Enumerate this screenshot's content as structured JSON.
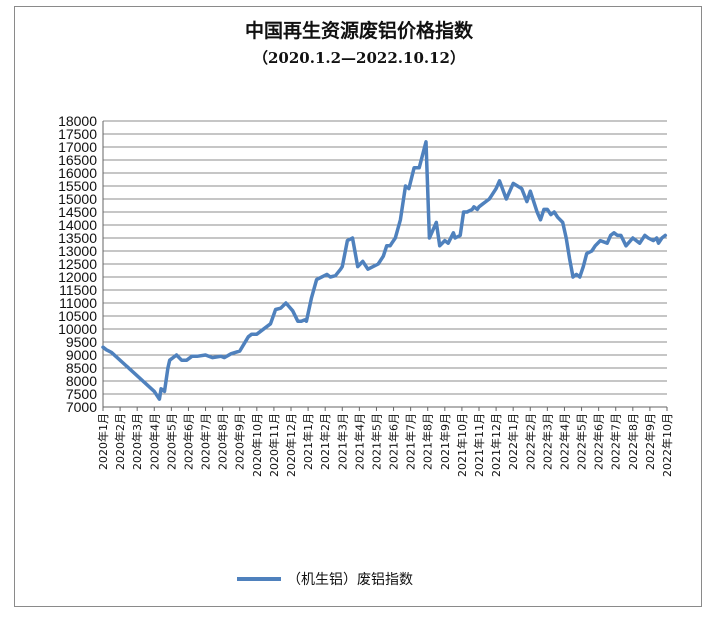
{
  "chart_data": {
    "type": "line",
    "title": "中国再生资源废铝价格指数",
    "subtitle": "（2020.1.2—2022.10.12）",
    "xlabel": "",
    "ylabel": "",
    "ylim": [
      7000,
      18000
    ],
    "y_ticks": [
      18000,
      17500,
      17000,
      16500,
      16000,
      15500,
      15000,
      14500,
      14000,
      13500,
      13000,
      12500,
      12000,
      11500,
      11000,
      10500,
      10000,
      9500,
      9000,
      8500,
      8000,
      7500,
      7000
    ],
    "x_tick_labels": [
      "2020年1月",
      "2020年2月",
      "2020年3月",
      "2020年4月",
      "2020年5月",
      "2020年6月",
      "2020年7月",
      "2020年8月",
      "2020年9月",
      "2020年10月",
      "2020年11月",
      "2020年12月",
      "2021年1月",
      "2021年2月",
      "2021年3月",
      "2021年4月",
      "2021年5月",
      "2021年6月",
      "2021年7月",
      "2021年8月",
      "2021年9月",
      "2021年10月",
      "2021年11月",
      "2021年12月",
      "2022年1月",
      "2022年2月",
      "2022年3月",
      "2022年4月",
      "2022年5月",
      "2022年6月",
      "2022年7月",
      "2022年8月",
      "2022年9月",
      "2022年10月"
    ],
    "grid": "horizontal",
    "legend_position": "bottom",
    "series": [
      {
        "name": "（机生铝）废铝指数",
        "color": "#4f81bd",
        "x": [
          0,
          0.2,
          0.5,
          3,
          3.3,
          3.4,
          3.6,
          3.8,
          3.9,
          4.1,
          4.3,
          4.6,
          4.9,
          5.2,
          5.5,
          6,
          6.4,
          6.9,
          7.1,
          7.5,
          8,
          8.5,
          8.7,
          9,
          9.3,
          9.8,
          10.1,
          10.4,
          10.7,
          10.9,
          11.1,
          11.4,
          11.6,
          11.8,
          11.9,
          12.2,
          12.5,
          13.1,
          13.3,
          13.6,
          13.9,
          14,
          14.3,
          14.6,
          14.9,
          15.2,
          15.5,
          16.1,
          16.4,
          16.6,
          16.8,
          16.9,
          17.1,
          17.4,
          17.7,
          17.9,
          18.2,
          18.5,
          18.9,
          19.1,
          19.5,
          19.7,
          20,
          20.2,
          20.5,
          20.6,
          20.9,
          21.1,
          21.3,
          21.6,
          21.7,
          21.9,
          22,
          22.2,
          22.4,
          22.6,
          22.7,
          23,
          23.2,
          23.6,
          24,
          24.5,
          24.8,
          25,
          25.2,
          25.4,
          25.6,
          25.8,
          26,
          26.2,
          26.4,
          26.6,
          26.9,
          27.1,
          27.3,
          27.5,
          27.7,
          27.9,
          28.1,
          28.3,
          28.6,
          28.8,
          29.1,
          29.5,
          29.7,
          29.9,
          30.1,
          30.3,
          30.6,
          31,
          31.4,
          31.7,
          31.9,
          32.2,
          32.4,
          32.5,
          32.7,
          32.9
        ],
        "y": [
          9300,
          9200,
          9100,
          7600,
          7300,
          7700,
          7600,
          8500,
          8800,
          8900,
          9000,
          8800,
          8800,
          8950,
          8950,
          9000,
          8900,
          8950,
          8900,
          9050,
          9150,
          9700,
          9800,
          9800,
          9950,
          10200,
          10750,
          10800,
          11000,
          10850,
          10700,
          10300,
          10300,
          10350,
          10300,
          11200,
          11900,
          12100,
          12000,
          12050,
          12300,
          12400,
          13400,
          13500,
          12400,
          12600,
          12300,
          12500,
          12800,
          13200,
          13200,
          13300,
          13500,
          14200,
          15500,
          15400,
          16200,
          16200,
          17200,
          13500,
          14100,
          13200,
          13400,
          13300,
          13700,
          13500,
          13600,
          14500,
          14500,
          14600,
          14700,
          14600,
          14700,
          14800,
          14900,
          15000,
          15100,
          15400,
          15700,
          15000,
          15600,
          15400,
          14900,
          15300,
          14900,
          14500,
          14200,
          14600,
          14600,
          14400,
          14500,
          14300,
          14100,
          13500,
          12700,
          12000,
          12100,
          12000,
          12400,
          12900,
          13000,
          13200,
          13400,
          13300,
          13600,
          13700,
          13600,
          13600,
          13200,
          13500,
          13300,
          13600,
          13500,
          13400,
          13500,
          13300,
          13500,
          13600
        ]
      }
    ]
  }
}
